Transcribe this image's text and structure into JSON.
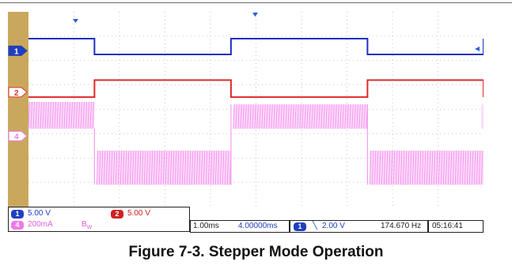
{
  "chart_data": {
    "type": "line",
    "title": "",
    "xlabel": "",
    "ylabel": "",
    "grid": true,
    "x_divisions": 10,
    "y_divisions": 8,
    "channel_markers": [
      {
        "label": "1",
        "color": "#1f3fbf",
        "level_div": 1.6
      },
      {
        "label": "2",
        "color": "#e03030",
        "level_div": 3.3
      },
      {
        "label": "4",
        "color": "#f07ae6",
        "level_div": 5.1
      }
    ],
    "series": [
      {
        "channel": "1",
        "color": "#2030c0",
        "kind": "digital",
        "high_div": 1.1,
        "low_div": 1.75,
        "transitions_div": [
          1.45,
          4.45,
          7.45,
          10.45
        ],
        "start_high": true
      },
      {
        "channel": "2",
        "color": "#e02828",
        "kind": "digital",
        "high_div": 2.8,
        "low_div": 3.5,
        "transitions_div": [
          1.45,
          4.45,
          7.45,
          10.45
        ],
        "start_high": false
      },
      {
        "channel": "4",
        "color": "#f59cf0",
        "kind": "chopped",
        "segments": [
          {
            "top_div": 3.7,
            "bottom_div": 4.8,
            "type": "burst"
          },
          {
            "top_div": 4.8,
            "bottom_div": 7.1,
            "type": "idle"
          },
          {
            "top_div": 5.7,
            "bottom_div": 7.1,
            "type": "burst"
          },
          {
            "top_div": 3.8,
            "bottom_div": 4.8,
            "type": "burst"
          },
          {
            "top_div": 5.7,
            "bottom_div": 7.1,
            "type": "burst"
          },
          {
            "top_div": 3.8,
            "bottom_div": 4.8,
            "type": "burst"
          }
        ]
      }
    ]
  },
  "status": {
    "ch1_badge": "1",
    "ch1_scale": "5.00 V",
    "ch2_badge": "2",
    "ch2_scale": "5.00 V",
    "ch4_badge": "4",
    "ch4_scale": "200mA",
    "bw_label": "B",
    "bw_sub": "W",
    "timebase": "1.00ms",
    "delay": "4.00000ms",
    "trig_badge": "1",
    "trig_slope": "╲",
    "trig_level": "2.00 V",
    "frequency": "174.670 Hz",
    "clock": "05:16:41"
  },
  "caption": "Figure 7-3. Stepper Mode Operation"
}
